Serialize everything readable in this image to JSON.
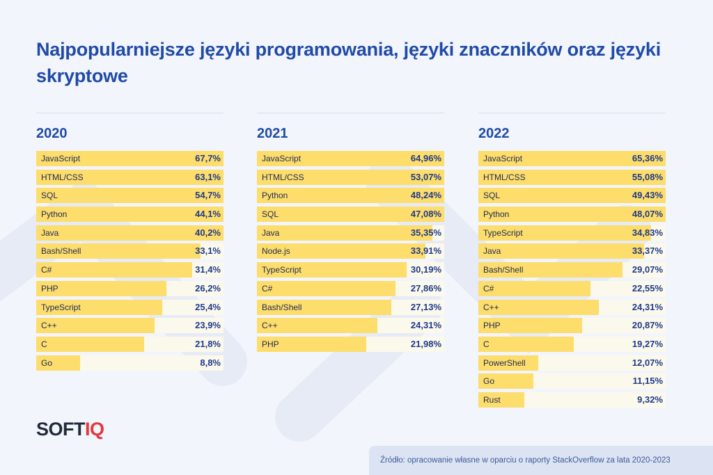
{
  "title": "Najpopularniejsze języki programowania, języki znaczników oraz języki skryptowe",
  "logo": {
    "part1": "SOFT",
    "part2": "IQ"
  },
  "source": "Źródło: opracowanie własne w oparciu o raporty StackOverflow za lata 2020-2023",
  "colors": {
    "title": "#1f4aa8",
    "bar": "#fddd6b",
    "track": "#fbf9ec",
    "value": "#1f3a8a",
    "logo_accent": "#e0393e"
  },
  "chart_data": [
    {
      "type": "bar",
      "title": "2020",
      "xlim": [
        0,
        100
      ],
      "categories": [
        "JavaScript",
        "HTML/CSS",
        "SQL",
        "Python",
        "Java",
        "Bash/Shell",
        "C#",
        "PHP",
        "TypeScript",
        "C++",
        "C",
        "Go"
      ],
      "values": [
        67.7,
        63.1,
        54.7,
        44.1,
        40.2,
        33.1,
        31.4,
        26.2,
        25.4,
        23.9,
        21.8,
        8.8
      ],
      "labels": [
        "67,7%",
        "63,1%",
        "54,7%",
        "44,1%",
        "40,2%",
        "33,1%",
        "31,4%",
        "26,2%",
        "25,4%",
        "23,9%",
        "21,8%",
        "8,8%"
      ]
    },
    {
      "type": "bar",
      "title": "2021",
      "xlim": [
        0,
        100
      ],
      "categories": [
        "JavaScript",
        "HTML/CSS",
        "Python",
        "SQL",
        "Java",
        "Node.js",
        "TypeScript",
        "C#",
        "Bash/Shell",
        "C++",
        "PHP"
      ],
      "values": [
        64.96,
        53.07,
        48.24,
        47.08,
        35.35,
        33.91,
        30.19,
        27.86,
        27.13,
        24.31,
        21.98
      ],
      "labels": [
        "64,96%",
        "53,07%",
        "48,24%",
        "47,08%",
        "35,35%",
        "33,91%",
        "30,19%",
        "27,86%",
        "27,13%",
        "24,31%",
        "21,98%"
      ]
    },
    {
      "type": "bar",
      "title": "2022",
      "xlim": [
        0,
        100
      ],
      "categories": [
        "JavaScript",
        "HTML/CSS",
        "SQL",
        "Python",
        "TypeScript",
        "Java",
        "Bash/Shell",
        "C#",
        "C++",
        "PHP",
        "C",
        "PowerShell",
        "Go",
        "Rust"
      ],
      "values": [
        65.36,
        55.08,
        49.43,
        48.07,
        34.83,
        33.37,
        29.07,
        22.55,
        24.31,
        20.87,
        19.27,
        12.07,
        11.15,
        9.32
      ],
      "labels": [
        "65,36%",
        "55,08%",
        "49,43%",
        "48,07%",
        "34,83%",
        "33,37%",
        "29,07%",
        "22,55%",
        "24,31%",
        "20,87%",
        "19,27%",
        "12,07%",
        "11,15%",
        "9,32%"
      ]
    }
  ]
}
